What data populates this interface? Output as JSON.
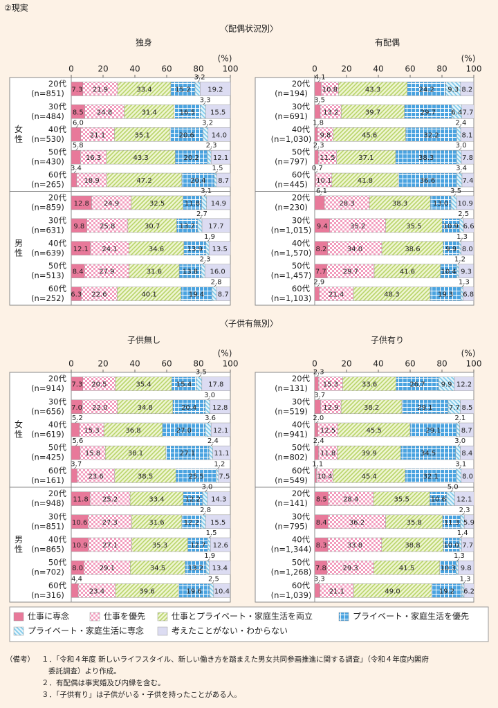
{
  "title": "②現実",
  "sections": [
    "〈配偶状況別〉",
    "〈子供有無別〉"
  ],
  "chart_data": [
    {
      "type": "bar",
      "orientation": "horizontal",
      "stacked": true,
      "title": "独身",
      "x_unit": "(%)",
      "xlim": [
        0,
        100
      ],
      "xticks": [
        0,
        20,
        40,
        60,
        80,
        100
      ],
      "groups": [
        "女性",
        "男性"
      ],
      "categories": [
        [
          "20代",
          "(n=851)"
        ],
        [
          "30代",
          "(n=484)"
        ],
        [
          "40代",
          "(n=530)"
        ],
        [
          "50代",
          "(n=430)"
        ],
        [
          "60代",
          "(n=265)"
        ],
        [
          "20代",
          "(n=859)"
        ],
        [
          "30代",
          "(n=631)"
        ],
        [
          "40代",
          "(n=639)"
        ],
        [
          "50代",
          "(n=513)"
        ],
        [
          "60代",
          "(n=252)"
        ]
      ],
      "series": [
        {
          "name": "仕事に専念",
          "color": "#e8799a",
          "values": [
            7.3,
            8.5,
            6.0,
            5.8,
            3.4,
            12.8,
            9.8,
            12.1,
            8.4,
            6.3
          ],
          "value_labels": [
            "7.3",
            "8.5",
            "6.0",
            "5.8",
            "3.4",
            "12.8",
            "9.8",
            "12.1",
            "8.4",
            "6.3"
          ]
        },
        {
          "name": "仕事を優先",
          "color": "#f29cbd",
          "values": [
            21.9,
            24.8,
            21.1,
            16.3,
            18.9,
            24.9,
            25.8,
            24.1,
            27.9,
            22.6
          ],
          "value_labels": [
            "21.9",
            "24.8",
            "21.1",
            "16.3",
            "18.9",
            "24.9",
            "25.8",
            "24.1",
            "27.9",
            "22.6"
          ]
        },
        {
          "name": "仕事とプライベート・家庭生活を両立",
          "color": "#b9d46a",
          "values": [
            33.4,
            31.4,
            35.1,
            43.3,
            47.2,
            32.5,
            30.7,
            34.6,
            31.6,
            40.1
          ],
          "value_labels": [
            "33.4",
            "31.4",
            "35.1",
            "43.3",
            "47.2",
            "32.5",
            "30.7",
            "34.6",
            "31.6",
            "40.1"
          ]
        },
        {
          "name": "プライベート・家庭生活を優先",
          "color": "#4aa3e0",
          "values": [
            15.2,
            16.5,
            20.6,
            20.2,
            20.4,
            11.8,
            13.2,
            13.9,
            13.8,
            19.4
          ],
          "value_labels": [
            "15.2",
            "16.5",
            "20.6",
            "20.2",
            "20.4",
            "11.8",
            "13.2",
            "13.9",
            "13.8",
            "19.4"
          ]
        },
        {
          "name": "プライベート・家庭生活に専念",
          "color": "#7cc8ea",
          "values": [
            3.2,
            3.3,
            3.2,
            2.3,
            1.5,
            3.1,
            2.7,
            1.9,
            2.3,
            2.8
          ],
          "value_labels": [
            "3.2",
            "3.3",
            "3.2",
            "2.3",
            "1.5",
            "3.1",
            "2.7",
            "1.9",
            "2.3",
            "2.8"
          ]
        },
        {
          "name": "考えたことがない・わからない",
          "color": "#dcdcf2",
          "values": [
            19.2,
            15.5,
            14.0,
            12.1,
            8.7,
            14.9,
            17.7,
            13.5,
            16.0,
            8.7
          ],
          "value_labels": [
            "19.2",
            "15.5",
            "14.0",
            "12.1",
            "8.7",
            "14.9",
            "17.7",
            "13.5",
            "16.0",
            "8.7"
          ]
        }
      ]
    },
    {
      "type": "bar",
      "orientation": "horizontal",
      "stacked": true,
      "title": "有配偶",
      "x_unit": "(%)",
      "xlim": [
        0,
        100
      ],
      "xticks": [
        0,
        20,
        40,
        60,
        80,
        100
      ],
      "categories": [
        [
          "20代",
          "(n=194)"
        ],
        [
          "30代",
          "(n=691)"
        ],
        [
          "40代",
          "(n=1,030)"
        ],
        [
          "50代",
          "(n=797)"
        ],
        [
          "60代",
          "(n=445)"
        ],
        [
          "20代",
          "(n=230)"
        ],
        [
          "30代",
          "(n=1,015)"
        ],
        [
          "40代",
          "(n=1,570)"
        ],
        [
          "50代",
          "(n=1,457)"
        ],
        [
          "60代",
          "(n=1,103)"
        ]
      ],
      "series": [
        {
          "values": [
            4.1,
            3.5,
            1.8,
            2.3,
            0.7,
            6.1,
            9.4,
            8.2,
            7.7,
            2.9
          ],
          "value_labels": [
            "4.1",
            "3.5",
            "1.8",
            "2.3",
            "0.7",
            "6.1",
            "9.4",
            "8.2",
            "7.7",
            "2.9"
          ]
        },
        {
          "values": [
            10.8,
            13.2,
            9.8,
            11.5,
            10.1,
            28.3,
            35.2,
            34.0,
            29.7,
            21.4
          ],
          "value_labels": [
            "10.8",
            "13.2",
            "9.8",
            "11.5",
            "10.1",
            "28.3",
            "35.2",
            "34.0",
            "29.7",
            "21.4"
          ]
        },
        {
          "values": [
            43.3,
            39.7,
            45.6,
            37.1,
            41.8,
            38.3,
            35.5,
            38.6,
            41.6,
            48.3
          ],
          "value_labels": [
            "43.3",
            "39.7",
            "45.6",
            "37.1",
            "41.8",
            "38.3",
            "35.5",
            "38.6",
            "41.6",
            "48.3"
          ]
        },
        {
          "values": [
            24.2,
            29.7,
            32.2,
            38.3,
            36.6,
            13.0,
            10.9,
            9.9,
            10.4,
            19.3
          ],
          "value_labels": [
            "24.2",
            "29.7",
            "32.2",
            "38.3",
            "36.6",
            "13.0",
            "10.9",
            "9.9",
            "10.4",
            "19.3"
          ]
        },
        {
          "values": [
            9.3,
            6.4,
            2.4,
            3.0,
            3.4,
            3.5,
            2.5,
            1.3,
            1.2,
            1.3
          ],
          "value_labels": [
            "9.3",
            "6.4",
            "2.4",
            "3.0",
            "3.4",
            "3.5",
            "2.5",
            "1.3",
            "1.2",
            "1.3"
          ]
        },
        {
          "values": [
            8.2,
            7.7,
            8.1,
            7.8,
            7.4,
            10.9,
            6.6,
            8.0,
            9.3,
            6.8
          ],
          "value_labels": [
            "8.2",
            "7.7",
            "8.1",
            "7.8",
            "7.4",
            "10.9",
            "6.6",
            "8.0",
            "9.3",
            "6.8"
          ]
        }
      ]
    },
    {
      "type": "bar",
      "orientation": "horizontal",
      "stacked": true,
      "title": "子供無し",
      "x_unit": "(%)",
      "xlim": [
        0,
        100
      ],
      "xticks": [
        0,
        20,
        40,
        60,
        80,
        100
      ],
      "groups": [
        "女性",
        "男性"
      ],
      "categories": [
        [
          "20代",
          "(n=914)"
        ],
        [
          "30代",
          "(n=656)"
        ],
        [
          "40代",
          "(n=619)"
        ],
        [
          "50代",
          "(n=425)"
        ],
        [
          "60代",
          "(n=161)"
        ],
        [
          "20代",
          "(n=948)"
        ],
        [
          "30代",
          "(n=851)"
        ],
        [
          "40代",
          "(n=865)"
        ],
        [
          "50代",
          "(n=702)"
        ],
        [
          "60代",
          "(n=316)"
        ]
      ],
      "series": [
        {
          "values": [
            7.3,
            7.0,
            5.2,
            5.6,
            3.7,
            11.8,
            10.6,
            10.9,
            8.0,
            4.4
          ],
          "value_labels": [
            "7.3",
            "7.0",
            "5.2",
            "5.6",
            "3.7",
            "11.8",
            "10.6",
            "10.9",
            "8.0",
            "4.4"
          ]
        },
        {
          "values": [
            20.5,
            22.0,
            15.3,
            15.8,
            23.6,
            25.2,
            27.3,
            27.1,
            29.1,
            23.4
          ],
          "value_labels": [
            "20.5",
            "22.0",
            "15.3",
            "15.8",
            "23.6",
            "25.2",
            "27.3",
            "27.1",
            "29.1",
            "23.4"
          ]
        },
        {
          "values": [
            35.4,
            34.8,
            36.8,
            38.1,
            38.5,
            33.4,
            31.6,
            35.3,
            34.5,
            39.6
          ],
          "value_labels": [
            "35.4",
            "34.8",
            "36.8",
            "38.1",
            "38.5",
            "33.4",
            "31.6",
            "35.3",
            "34.5",
            "39.6"
          ]
        },
        {
          "values": [
            15.4,
            20.4,
            27.0,
            27.1,
            25.5,
            12.2,
            12.2,
            12.7,
            13.2,
            19.6
          ],
          "value_labels": [
            "15.4",
            "20.4",
            "27.0",
            "27.1",
            "25.5",
            "12.2",
            "12.2",
            "12.7",
            "13.2",
            "19.6"
          ]
        },
        {
          "values": [
            3.5,
            3.0,
            3.6,
            2.4,
            1.2,
            3.0,
            2.8,
            1.5,
            1.9,
            2.5
          ],
          "value_labels": [
            "3.5",
            "3.0",
            "3.6",
            "2.4",
            "1.2",
            "3.0",
            "2.8",
            "1.5",
            "1.9",
            "2.5"
          ]
        },
        {
          "values": [
            17.8,
            12.8,
            12.1,
            11.1,
            7.5,
            14.3,
            15.5,
            12.6,
            13.4,
            10.4
          ],
          "value_labels": [
            "17.8",
            "12.8",
            "12.1",
            "11.1",
            "7.5",
            "14.3",
            "15.5",
            "12.6",
            "13.4",
            "10.4"
          ]
        }
      ]
    },
    {
      "type": "bar",
      "orientation": "horizontal",
      "stacked": true,
      "title": "子供有り",
      "x_unit": "(%)",
      "xlim": [
        0,
        100
      ],
      "xticks": [
        0,
        20,
        40,
        60,
        80,
        100
      ],
      "categories": [
        [
          "20代",
          "(n=131)"
        ],
        [
          "30代",
          "(n=519)"
        ],
        [
          "40代",
          "(n=941)"
        ],
        [
          "50代",
          "(n=802)"
        ],
        [
          "60代",
          "(n=549)"
        ],
        [
          "20代",
          "(n=141)"
        ],
        [
          "30代",
          "(n=795)"
        ],
        [
          "40代",
          "(n=1,344)"
        ],
        [
          "50代",
          "(n=1,268)"
        ],
        [
          "60代",
          "(n=1,039)"
        ]
      ],
      "series": [
        {
          "values": [
            2.3,
            3.7,
            2.0,
            2.4,
            1.1,
            8.5,
            8.4,
            8.3,
            7.8,
            3.3
          ],
          "value_labels": [
            "2.3",
            "3.7",
            "2.0",
            "2.4",
            "1.1",
            "8.5",
            "8.4",
            "8.3",
            "7.8",
            "3.3"
          ]
        },
        {
          "values": [
            15.3,
            12.9,
            12.5,
            11.8,
            10.4,
            28.4,
            36.2,
            33.8,
            29.3,
            21.1
          ],
          "value_labels": [
            "15.3",
            "12.9",
            "12.5",
            "11.8",
            "10.4",
            "28.4",
            "36.2",
            "33.8",
            "29.3",
            "21.1"
          ]
        },
        {
          "values": [
            33.6,
            38.2,
            45.5,
            39.9,
            45.4,
            35.5,
            35.8,
            38.8,
            41.5,
            49.0
          ],
          "value_labels": [
            "33.6",
            "38.2",
            "45.5",
            "39.9",
            "45.4",
            "35.5",
            "35.8",
            "38.8",
            "41.5",
            "49.0"
          ]
        },
        {
          "values": [
            26.7,
            29.1,
            29.1,
            34.5,
            32.1,
            10.6,
            11.3,
            10.0,
            10.3,
            19.2
          ],
          "value_labels": [
            "26.7",
            "29.1",
            "29.1",
            "34.5",
            "32.1",
            "10.6",
            "11.3",
            "10.0",
            "10.3",
            "19.2"
          ]
        },
        {
          "values": [
            9.9,
            7.7,
            2.1,
            3.0,
            3.1,
            5.0,
            2.3,
            1.4,
            1.3,
            1.3
          ],
          "value_labels": [
            "9.9",
            "7.7",
            "2.1",
            "3.0",
            "3.1",
            "5.0",
            "2.3",
            "1.4",
            "1.3",
            "1.3"
          ]
        },
        {
          "values": [
            12.2,
            8.5,
            8.7,
            8.4,
            8.0,
            12.1,
            5.9,
            7.7,
            9.8,
            6.2
          ],
          "value_labels": [
            "12.2",
            "8.5",
            "8.7",
            "8.4",
            "8.0",
            "12.1",
            "5.9",
            "7.7",
            "9.8",
            "6.2"
          ]
        }
      ]
    }
  ],
  "notes_label": "（備考）",
  "notes": [
    "１．「令和４年度 新しいライフスタイル、新しい働き方を踏まえた男女共同参画推進に関する調査」（令和４年度内閣府",
    "委託調査）より作成。",
    "２．有配偶は事実婚及び内縁を含む。",
    "３．「子供有り」は子供がいる・子供を持ったことがある人。"
  ]
}
